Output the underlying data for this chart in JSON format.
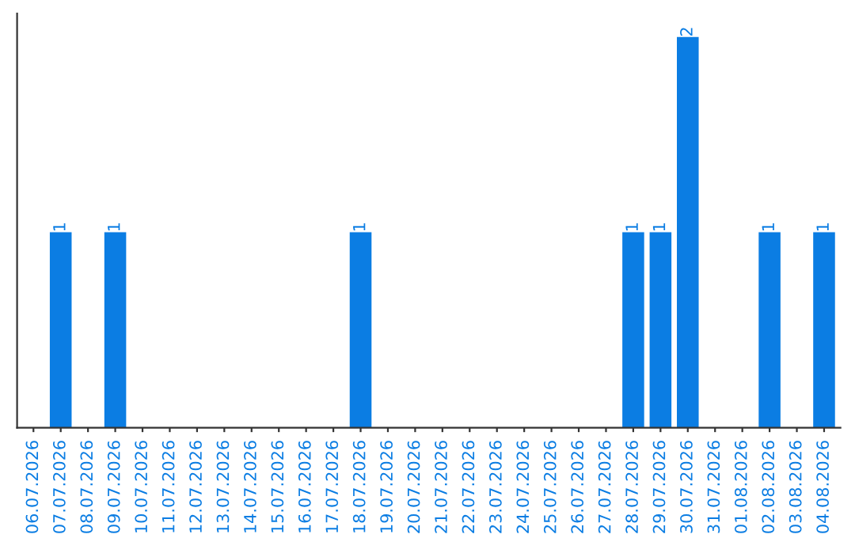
{
  "chart_data": {
    "type": "bar",
    "categories": [
      "06.07.2026",
      "07.07.2026",
      "08.07.2026",
      "09.07.2026",
      "10.07.2026",
      "11.07.2026",
      "12.07.2026",
      "13.07.2026",
      "14.07.2026",
      "15.07.2026",
      "16.07.2026",
      "17.07.2026",
      "18.07.2026",
      "19.07.2026",
      "20.07.2026",
      "21.07.2026",
      "22.07.2026",
      "23.07.2026",
      "24.07.2026",
      "25.07.2026",
      "26.07.2026",
      "27.07.2026",
      "28.07.2026",
      "29.07.2026",
      "30.07.2026",
      "31.07.2026",
      "01.08.2026",
      "02.08.2026",
      "03.08.2026",
      "04.08.2026"
    ],
    "values": [
      0,
      1,
      0,
      1,
      0,
      0,
      0,
      0,
      0,
      0,
      0,
      0,
      1,
      0,
      0,
      0,
      0,
      0,
      0,
      0,
      0,
      0,
      1,
      1,
      2,
      0,
      0,
      1,
      0,
      1
    ],
    "value_labels": [
      null,
      "1",
      null,
      "1",
      null,
      null,
      null,
      null,
      null,
      null,
      null,
      null,
      "1",
      null,
      null,
      null,
      null,
      null,
      null,
      null,
      null,
      null,
      "1",
      "1",
      "2",
      null,
      null,
      "1",
      null,
      "1"
    ],
    "color": "#0b7de3",
    "grid": false,
    "legend": false,
    "tick_labels": "x"
  }
}
